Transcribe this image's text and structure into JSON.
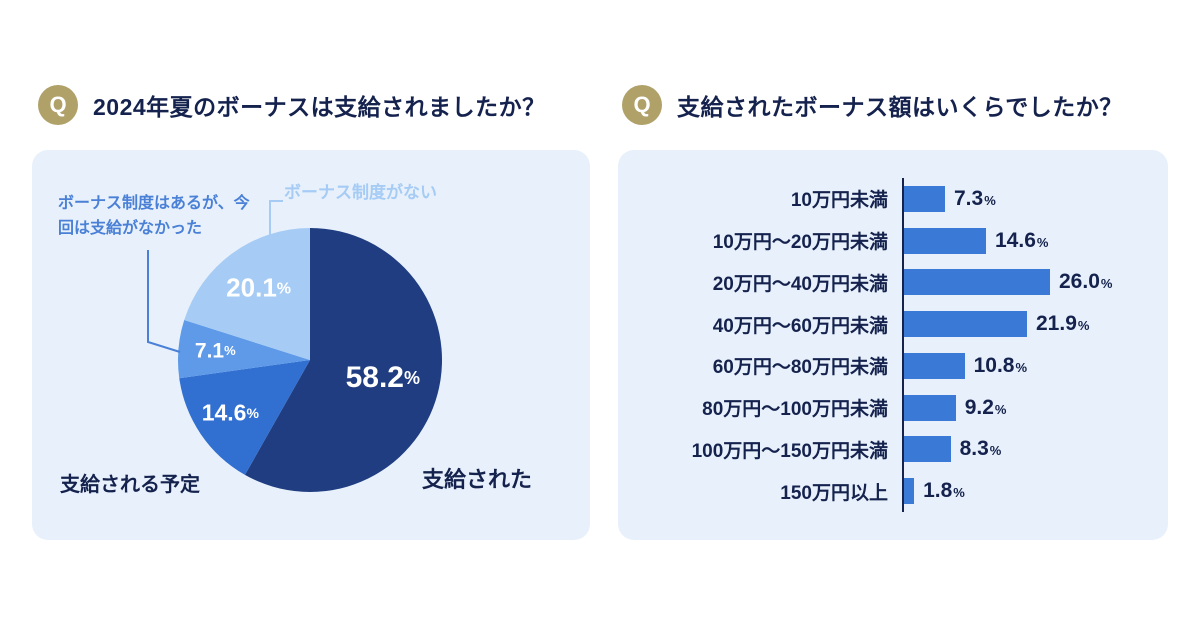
{
  "badge_label": "Q",
  "colors": {
    "page_bg": "#ffffff",
    "panel_bg": "#e8f1fb",
    "badge_gold": "#b0a169",
    "text_navy": "#14224d",
    "callout_medium_blue": "#4a80d6",
    "callout_light_blue": "#a6ccf5",
    "bar_blue": "#3b79d6"
  },
  "questions": [
    {
      "title": "2024年夏のボーナスは支給されましたか？"
    },
    {
      "title": "支給されたボーナス額はいくらでしたか？"
    }
  ],
  "chart_data": [
    {
      "type": "pie",
      "title": "2024年夏のボーナスは支給されましたか？",
      "labels": [
        "支給された",
        "支給される予定",
        "ボーナス制度はあるが、今回は支給がなかった",
        "ボーナス制度がない"
      ],
      "values": [
        58.2,
        14.6,
        7.1,
        20.1
      ],
      "unit": "%",
      "colors": [
        "#1f3d80",
        "#316fd0",
        "#5e9ae8",
        "#a6ccf5"
      ],
      "start_angle": "top",
      "direction": "clockwise",
      "value_label_color": "#ffffff"
    },
    {
      "type": "bar",
      "orientation": "horizontal",
      "title": "支給されたボーナス額はいくらでしたか？",
      "categories": [
        "10万円未満",
        "10万円〜20万円未満",
        "20万円〜40万円未満",
        "40万円〜60万円未満",
        "60万円〜80万円未満",
        "80万円〜100万円未満",
        "100万円〜150万円未満",
        "150万円以上"
      ],
      "values": [
        7.3,
        14.6,
        26.0,
        21.9,
        10.8,
        9.2,
        8.3,
        1.8
      ],
      "unit": "%",
      "xlim": [
        0,
        30
      ],
      "bar_color": "#3b79d6",
      "grid": false,
      "legend": false
    }
  ]
}
